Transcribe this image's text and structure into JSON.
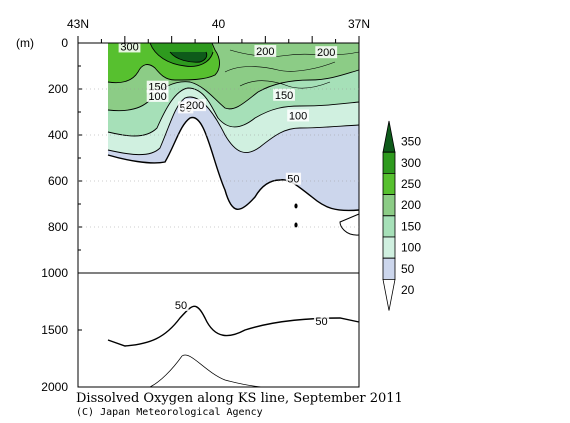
{
  "chart_data": {
    "type": "contour",
    "title": "Dissolved Oxygen along KS line, September 2011",
    "credit": "(C) Japan Meteorological Agency",
    "x_ticks": [
      "43N",
      "40",
      "37N"
    ],
    "y_unit": "(m)",
    "y_ticks_upper": [
      "0",
      "200",
      "400",
      "600",
      "800",
      "1000"
    ],
    "y_ticks_lower": [
      "1500",
      "2000"
    ],
    "upper_range": [
      0,
      1000
    ],
    "lower_range": [
      1000,
      2000
    ],
    "xlim": [
      43,
      37
    ],
    "levels": [
      20,
      50,
      100,
      150,
      200,
      250,
      300,
      350
    ],
    "colorbar_labels": [
      "350",
      "300",
      "250",
      "200",
      "150",
      "100",
      "50",
      "20"
    ],
    "colors": [
      "#ffffff",
      "#ccd6ec",
      "#d0f0e0",
      "#a6e0b8",
      "#8ccc86",
      "#57c02f",
      "#2e9a1e",
      "#0e5a1a"
    ],
    "contour_labels": [
      {
        "text": "300",
        "lat": 41.9,
        "depth": 15
      },
      {
        "text": "200",
        "lat": 39.0,
        "depth": 35
      },
      {
        "text": "200",
        "lat": 37.7,
        "depth": 40
      },
      {
        "text": "150",
        "lat": 41.3,
        "depth": 190
      },
      {
        "text": "100",
        "lat": 41.3,
        "depth": 230
      },
      {
        "text": "50",
        "lat": 40.7,
        "depth": 280
      },
      {
        "text": "200",
        "lat": 40.5,
        "depth": 270
      },
      {
        "text": "150",
        "lat": 38.6,
        "depth": 225
      },
      {
        "text": "100",
        "lat": 38.3,
        "depth": 315
      },
      {
        "text": "50",
        "lat": 38.4,
        "depth": 590
      },
      {
        "text": "50",
        "lat": 40.8,
        "depth": 1280
      },
      {
        "text": "50",
        "lat": 37.8,
        "depth": 1420
      }
    ]
  }
}
